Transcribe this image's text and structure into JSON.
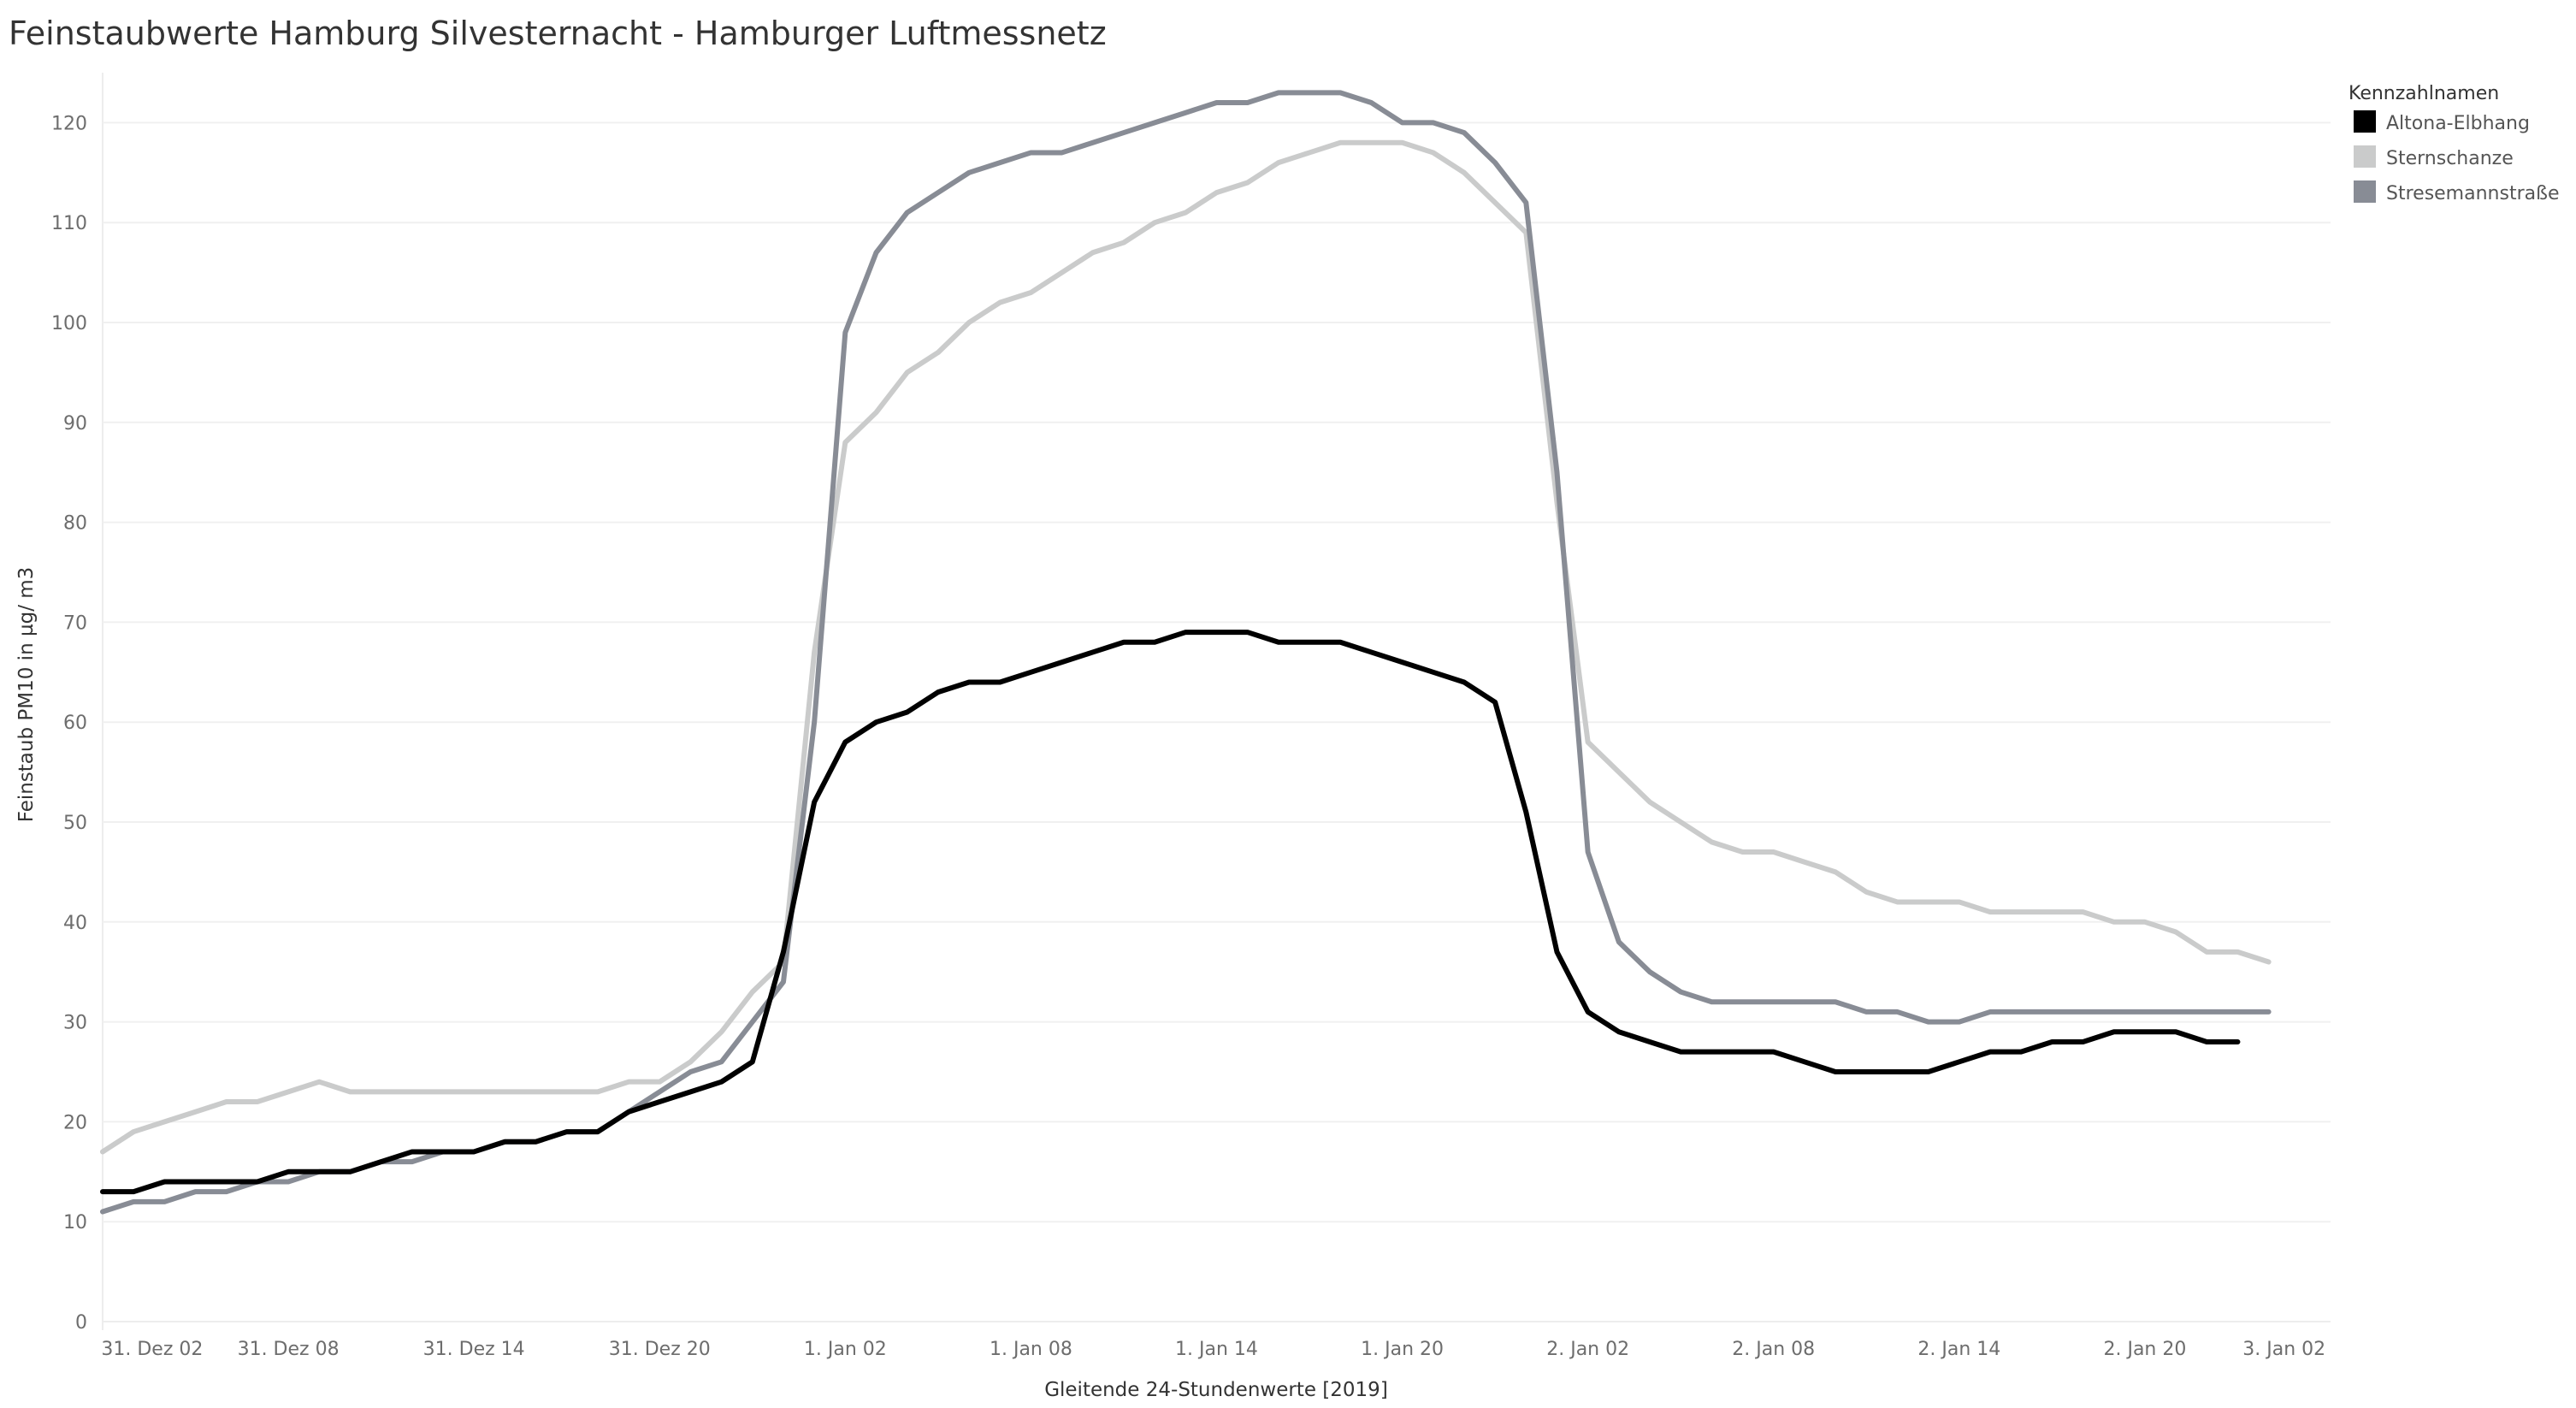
{
  "chart_data": {
    "type": "line",
    "title": "Feinstaubwerte Hamburg Silvesternacht - Hamburger Luftmessnetz",
    "xlabel": "Gleitende 24-Stundenwerte [2019]",
    "ylabel": "Feinstaub PM10 in µg/ m3",
    "ylim": [
      0,
      125
    ],
    "yticks": [
      0,
      10,
      20,
      30,
      40,
      50,
      60,
      70,
      80,
      90,
      100,
      110,
      120
    ],
    "x_hours": [
      0,
      1,
      2,
      3,
      4,
      5,
      6,
      7,
      8,
      9,
      10,
      11,
      12,
      13,
      14,
      15,
      16,
      17,
      18,
      19,
      20,
      21,
      22,
      23,
      24,
      25,
      26,
      27,
      28,
      29,
      30,
      31,
      32,
      33,
      34,
      35,
      36,
      37,
      38,
      39,
      40,
      41,
      42,
      43,
      44,
      45,
      46,
      47,
      48,
      49,
      50,
      51,
      52,
      53,
      54,
      55,
      56,
      57,
      58,
      59,
      60,
      61,
      62,
      63,
      64,
      65,
      66,
      67,
      68,
      69,
      70,
      71,
      72
    ],
    "x_tick_labels": [
      {
        "label": "31. Dez 02",
        "pos": 1.6
      },
      {
        "label": "31. Dez 08",
        "pos": 6
      },
      {
        "label": "31. Dez 14",
        "pos": 12
      },
      {
        "label": "31. Dez 20",
        "pos": 18
      },
      {
        "label": "1. Jan 02",
        "pos": 24
      },
      {
        "label": "1. Jan 08",
        "pos": 30
      },
      {
        "label": "1. Jan 14",
        "pos": 36
      },
      {
        "label": "1. Jan 20",
        "pos": 42
      },
      {
        "label": "2. Jan 02",
        "pos": 48
      },
      {
        "label": "2. Jan 08",
        "pos": 54
      },
      {
        "label": "2. Jan 14",
        "pos": 60
      },
      {
        "label": "2. Jan 20",
        "pos": 66
      },
      {
        "label": "3. Jan 02",
        "pos": 70.5
      }
    ],
    "legend": {
      "title": "Kennzahlnamen",
      "position": "top-right"
    },
    "grid": true,
    "series": [
      {
        "name": "Altona-Elbhang",
        "color": "#000000",
        "values": [
          13,
          13,
          14,
          14,
          14,
          14,
          15,
          15,
          15,
          16,
          17,
          17,
          17,
          18,
          18,
          19,
          19,
          21,
          22,
          23,
          24,
          26,
          37,
          52,
          58,
          60,
          61,
          63,
          64,
          64,
          65,
          66,
          67,
          68,
          68,
          69,
          69,
          69,
          68,
          68,
          68,
          67,
          66,
          65,
          64,
          62,
          51,
          37,
          31,
          29,
          28,
          27,
          27,
          27,
          27,
          26,
          25,
          25,
          25,
          25,
          26,
          27,
          27,
          28,
          28,
          29,
          29,
          29,
          28,
          28,
          null,
          null,
          null
        ]
      },
      {
        "name": "Sternschanze",
        "color": "#cacbcb",
        "values": [
          17,
          19,
          20,
          21,
          22,
          22,
          23,
          24,
          23,
          23,
          23,
          23,
          23,
          23,
          23,
          23,
          23,
          24,
          24,
          26,
          29,
          33,
          36,
          67,
          88,
          91,
          95,
          97,
          100,
          102,
          103,
          105,
          107,
          108,
          110,
          111,
          113,
          114,
          116,
          117,
          118,
          118,
          118,
          117,
          115,
          112,
          109,
          82,
          58,
          55,
          52,
          50,
          48,
          47,
          47,
          46,
          45,
          43,
          42,
          42,
          42,
          41,
          41,
          41,
          41,
          40,
          40,
          39,
          37,
          37,
          36,
          null,
          null
        ]
      },
      {
        "name": "Stresemannstraße",
        "color": "#888c95",
        "values": [
          11,
          12,
          12,
          13,
          13,
          14,
          14,
          15,
          15,
          16,
          16,
          17,
          17,
          18,
          18,
          19,
          19,
          21,
          23,
          25,
          26,
          30,
          34,
          60,
          99,
          107,
          111,
          113,
          115,
          116,
          117,
          117,
          118,
          119,
          120,
          121,
          122,
          122,
          123,
          123,
          123,
          122,
          120,
          120,
          119,
          116,
          112,
          85,
          47,
          38,
          35,
          33,
          32,
          32,
          32,
          32,
          32,
          31,
          31,
          30,
          30,
          31,
          31,
          31,
          31,
          31,
          31,
          31,
          31,
          31,
          31,
          null,
          null
        ]
      }
    ]
  }
}
